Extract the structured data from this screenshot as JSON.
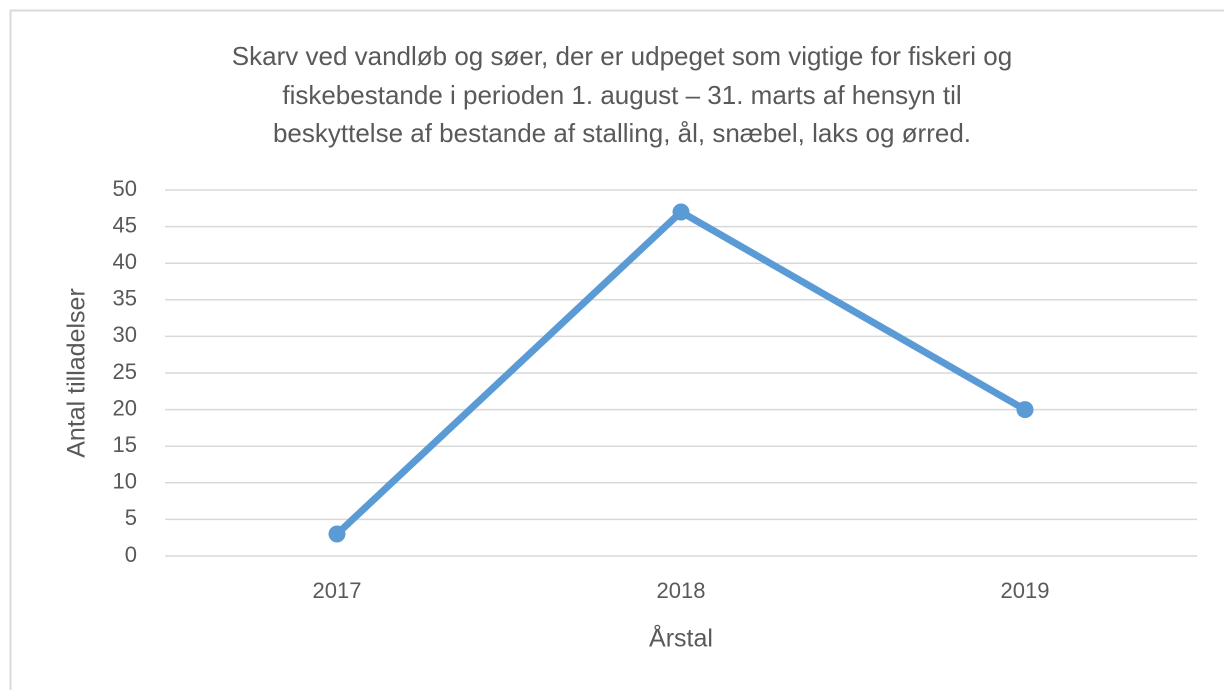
{
  "chart_data": {
    "type": "line",
    "title": [
      "Skarv ved vandløb og søer, der er udpeget som vigtige for fiskeri og",
      "fiskebestande i perioden 1. august – 31. marts af hensyn til",
      "beskyttelse af bestande af stalling, ål, snæbel, laks og ørred."
    ],
    "x_label": "Årstal",
    "y_label": "Antal tilladelser",
    "categories": [
      "2017",
      "2018",
      "2019"
    ],
    "values": [
      3,
      47,
      20
    ],
    "color": "#5b9bd5",
    "ylim": [
      0,
      50
    ],
    "yticks": [
      0,
      5,
      10,
      15,
      20,
      25,
      30,
      35,
      40,
      45,
      50
    ],
    "grid": true
  }
}
